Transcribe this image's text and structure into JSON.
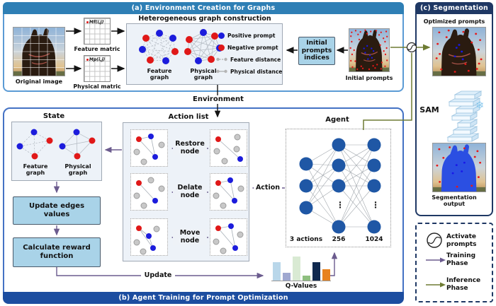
{
  "colors": {
    "panel_a_header": "#2e7fb5",
    "panel_a_border": "#5b9bd5",
    "panel_b_banner": "#1c4da0",
    "panel_b_border": "#4472c4",
    "panel_c_header": "#1f3864",
    "positive_prompt": "#1c1cdc",
    "negative_prompt": "#e01818",
    "training_arrow": "#6b5b8e",
    "inference_arrow": "#6e7c33",
    "action_box_fill": "#a9d3e8"
  },
  "panel_a": {
    "title": "(a) Environment Creation for Graphs",
    "original_image_label": "Original image",
    "feature_matrix_label": "Feature matric",
    "physical_matrix_label": "Physical matric",
    "matrix_cell_feature": "Mf(i,j)",
    "matrix_cell_physical": "Mp(i,j)",
    "hetero": {
      "title": "Heterogeneous graph construction",
      "feature_graph_label": "Feature graph",
      "physical_graph_label": "Physical graph",
      "legend": [
        {
          "icon": "positive-prompt-dot",
          "label": "Positive prompt"
        },
        {
          "icon": "negative-prompt-dot",
          "label": "Negative prompt"
        },
        {
          "icon": "feature-distance-edge",
          "label": "Feature distance"
        },
        {
          "icon": "physical-distance-edge",
          "label": "Physical distance"
        }
      ]
    },
    "initial_prompts_indices_label": "Initial prompts indices",
    "initial_prompts_label": "Initial prompts"
  },
  "environment_label": "Environment",
  "panel_b": {
    "title": "(b) Agent Training for Prompt Optimization",
    "state_title": "State",
    "state_feature_label": "Feature graph",
    "state_physical_label": "Physical graph",
    "update_edges_label": "Update edges values",
    "reward_label": "Calculate reward function",
    "action_list_title": "Action list",
    "actions": [
      {
        "label": "Restore node"
      },
      {
        "label": "Delate node"
      },
      {
        "label": "Move node"
      }
    ],
    "agent_title": "Agent",
    "agent_layers": [
      "3 actions",
      "256",
      "1024"
    ],
    "agent_ellipsis": "⋮",
    "action_arrow_label": "Action",
    "update_arrow_label": "Update",
    "qvalues_label": "Q-Values"
  },
  "panel_c": {
    "title": "(c) Segmentation",
    "optimized_prompts_label": "Optimized prompts",
    "sam_label": "SAM",
    "sam_frozen_icon": "❄",
    "segmentation_output_label": "Segmentation output"
  },
  "legend": {
    "items": [
      {
        "icon": "activate-prompts-icon",
        "label": "Activate prompts"
      },
      {
        "icon": "training-arrow-icon",
        "label": "Training Phase"
      },
      {
        "icon": "inference-arrow-icon",
        "label": "Inference Phase"
      }
    ]
  },
  "chart_data": {
    "type": "bar",
    "title": "Q-Values",
    "values": [
      0.76,
      0.32,
      1.0,
      0.2,
      0.76,
      0.47
    ],
    "colors": [
      "#b9d7ea",
      "#9fa8d0",
      "#d9ead3",
      "#8fbf7f",
      "#10294f",
      "#e8821e"
    ],
    "ylim": [
      0,
      1
    ]
  }
}
